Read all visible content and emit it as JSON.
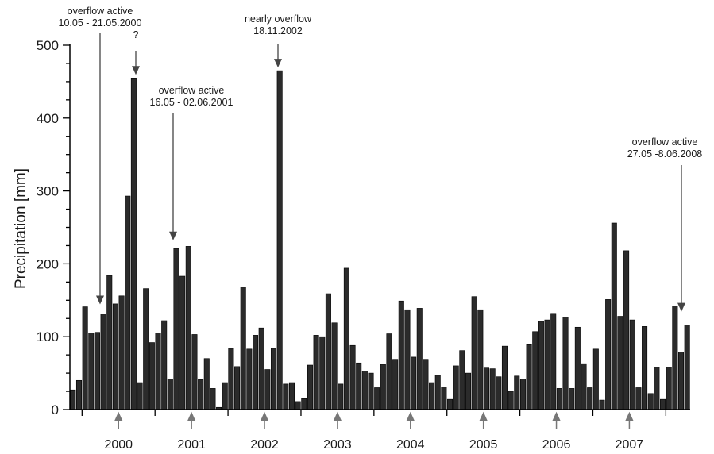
{
  "chart_data": {
    "type": "bar",
    "title": "",
    "xlabel": "",
    "ylabel": "Precipitation [mm]",
    "ylim": [
      0,
      500
    ],
    "yticks": [
      0,
      100,
      200,
      300,
      400,
      500
    ],
    "grid": false,
    "colors": {
      "bar": "#2b2b2b",
      "arrow": "#777777"
    },
    "start_month": "1999-11",
    "values": [
      27,
      40,
      141,
      105,
      106,
      131,
      184,
      145,
      156,
      293,
      455,
      37,
      166,
      92,
      105,
      122,
      42,
      221,
      183,
      224,
      103,
      41,
      70,
      29,
      3,
      37,
      84,
      59,
      168,
      83,
      102,
      112,
      55,
      84,
      465,
      35,
      37,
      11,
      15,
      61,
      102,
      100,
      159,
      119,
      35,
      194,
      88,
      64,
      53,
      50,
      30,
      62,
      104,
      69,
      149,
      137,
      72,
      139,
      69,
      37,
      47,
      31,
      14,
      60,
      81,
      50,
      155,
      137,
      57,
      56,
      45,
      87,
      25,
      46,
      42,
      89,
      107,
      121,
      123,
      132,
      29,
      127,
      29,
      113,
      63,
      30,
      83,
      13,
      151,
      256,
      128,
      218,
      123,
      30,
      114,
      22,
      58,
      14,
      58,
      142,
      79,
      116
    ],
    "year_labels": [
      "2000",
      "2001",
      "2002",
      "2003",
      "2004",
      "2005",
      "2006",
      "2007"
    ],
    "annotations": [
      {
        "lines": [
          "overflow active",
          "10.05 - 21.05.2000"
        ],
        "bar_index": 6,
        "target_value": 140
      },
      {
        "lines": [
          "?"
        ],
        "bar_index": 10,
        "target_value": 455
      },
      {
        "lines": [
          "overflow active",
          "16.05 - 02.06.2001"
        ],
        "bar_index": 17,
        "target_value": 228
      },
      {
        "lines": [
          "nearly overflow",
          "18.11.2002"
        ],
        "bar_index": 34,
        "target_value": 465
      },
      {
        "lines": [
          "overflow active",
          "27.05 -8.06.2008"
        ],
        "bar_index": 101,
        "target_value": 130
      }
    ]
  }
}
